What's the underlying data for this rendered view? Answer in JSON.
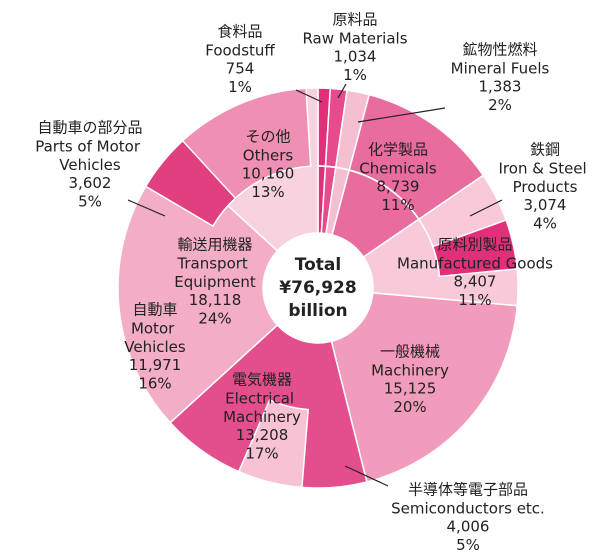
{
  "chart_data": {
    "type": "sunburst",
    "center_label": [
      "Total",
      "¥76,928",
      "billion"
    ],
    "segments": [
      {
        "name": "Foodstuff",
        "name_ja": "食料品",
        "value": 754,
        "percent_label": "1%",
        "color": "#e0307a"
      },
      {
        "name": "Raw Materials",
        "name_ja": "原料品",
        "value": 1034,
        "value_label": "1,034",
        "percent_label": "1%",
        "color": "#e64b8e"
      },
      {
        "name": "Mineral Fuels",
        "name_ja": "鉱物性燃料",
        "value": 1383,
        "value_label": "1,383",
        "percent_label": "2%",
        "color": "#f5bfd2"
      },
      {
        "name": "Chemicals",
        "name_ja": "化学製品",
        "value": 8739,
        "value_label": "8,739",
        "percent_label": "11%",
        "color": "#e96c9f"
      },
      {
        "name": "Manufactured Goods",
        "name_ja": "原料別製品",
        "value": 8407,
        "value_label": "8,407",
        "percent_label": "11%",
        "color": "#f8c9d8",
        "children": [
          {
            "name": "Iron & Steel Products",
            "name_ja": "鉄鋼",
            "value": 3074,
            "value_label": "3,074",
            "percent_label": "4%",
            "color": "#e0307a"
          }
        ]
      },
      {
        "name": "Machinery",
        "name_ja": "一般機械",
        "value": 15125,
        "value_label": "15,125",
        "percent_label": "20%",
        "color": "#f19bbd"
      },
      {
        "name": "Electrical Machinery",
        "name_ja": "電気機器",
        "value": 13208,
        "value_label": "13,208",
        "percent_label": "17%",
        "color": "#e34e8c",
        "children": [
          {
            "name": "Semiconductors etc.",
            "name_ja": "半導体等電子部品",
            "value": 4006,
            "value_label": "4,006",
            "percent_label": "5%",
            "color": "#f7c2d4"
          }
        ]
      },
      {
        "name": "Transport Equipment",
        "name_ja": "輸送用機器",
        "value": 18118,
        "value_label": "18,118",
        "percent_label": "24%",
        "color": "#f4adc6",
        "children": [
          {
            "name": "Motor Vehicles",
            "name_ja": "自動車",
            "value": 11971,
            "value_label": "11,971",
            "percent_label": "16%",
            "color": "#ef8fb3"
          },
          {
            "name": "Parts of Motor Vehicles",
            "name_ja": "自動車の部分品",
            "value": 3602,
            "value_label": "3,602",
            "percent_label": "5%",
            "color": "#e0407f"
          }
        ]
      },
      {
        "name": "Others",
        "name_ja": "その他",
        "value": 10160,
        "value_label": "10,160",
        "percent_label": "13%",
        "color": "#f8d2de"
      }
    ]
  }
}
